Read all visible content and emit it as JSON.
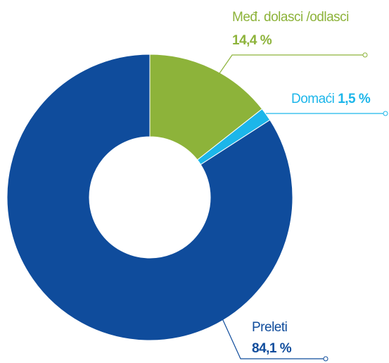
{
  "chart_data": {
    "type": "donut",
    "categories": [
      "Međ. dolasci /odlasci",
      "Domaći",
      "Preleti"
    ],
    "values": [
      14.4,
      1.5,
      84.1
    ],
    "value_labels": [
      "14,4 %",
      "1,5 %",
      "84,1 %"
    ],
    "colors": [
      "#8db33a",
      "#1cb6ea",
      "#0f4c9c"
    ]
  }
}
